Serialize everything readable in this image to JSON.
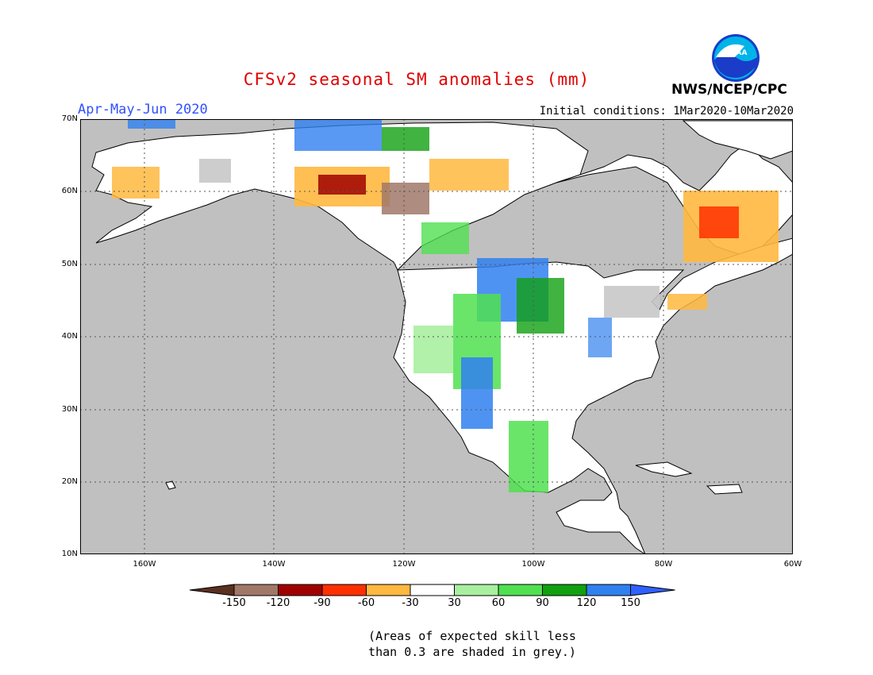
{
  "title": "CFSv2 seasonal SM anomalies (mm)",
  "season": "Apr-May-Jun 2020",
  "initial_conditions": "Initial conditions: 1Mar2020-10Mar2020",
  "agency": "NWS/NCEP/CPC",
  "logo_text": "NOAA",
  "lat_labels": [
    "70N",
    "60N",
    "50N",
    "40N",
    "30N",
    "20N",
    "10N"
  ],
  "lon_labels": [
    "160W",
    "140W",
    "120W",
    "100W",
    "80W",
    "60W"
  ],
  "colorbar": {
    "ticks": [
      "-150",
      "-120",
      "-90",
      "-60",
      "-30",
      "30",
      "60",
      "90",
      "120",
      "150"
    ],
    "colors": [
      "#5a3020",
      "#a07868",
      "#a00000",
      "#ff3000",
      "#ffb840",
      "#ffffff",
      "#a8f0a0",
      "#50e050",
      "#10a010",
      "#3080f0",
      "#3060ff"
    ]
  },
  "colors": {
    "ocean": "#c0c0c0",
    "land": "#ffffff",
    "grey_land": "#c8c8c8"
  },
  "note_line1": "(Areas of expected skill less",
  "note_line2": "than 0.3 are shaded in grey.)"
}
